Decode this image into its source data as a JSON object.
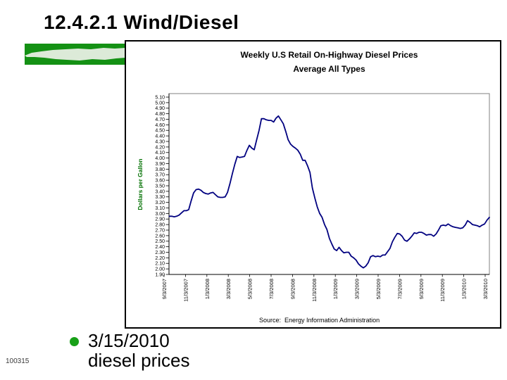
{
  "slide": {
    "title": "12.4.2.1 Wind/Diesel",
    "bullet": {
      "line1": "3/15/2010",
      "line2": "diesel prices"
    },
    "slide_number": "100315"
  },
  "colors": {
    "accent_green": "#149114",
    "accent_streak": "#dcead8",
    "bullet_green": "#18a018",
    "axis_label_green": "#007000",
    "line_navy": "#000080",
    "plot_border_gray": "#808080"
  },
  "chart_data": {
    "type": "line",
    "title": "Weekly U.S Retail On-Highway Diesel Prices",
    "subtitle": "Average All Types",
    "ylabel": "Dollars per Gallon",
    "source": "Source:  Energy Information Administration",
    "ylim": [
      1.9,
      5.1
    ],
    "ytick_step": 0.1,
    "grid": "horizontal",
    "legend": "none",
    "xtick_labels": [
      "9/3/2007",
      "11/3/2007",
      "1/3/2008",
      "3/3/2008",
      "5/3/2008",
      "7/3/2008",
      "9/3/2008",
      "11/3/2008",
      "1/3/2009",
      "3/3/2009",
      "5/3/2009",
      "7/3/2009",
      "9/3/2009",
      "11/3/2009",
      "1/3/2010",
      "3/3/2010"
    ],
    "series": [
      {
        "dates": [
          "9/3/2007",
          "9/10/2007",
          "9/17/2007",
          "9/24/2007",
          "10/1/2007",
          "10/8/2007",
          "10/15/2007",
          "10/22/2007",
          "10/29/2007",
          "11/5/2007",
          "11/12/2007",
          "11/19/2007",
          "11/26/2007",
          "12/3/2007",
          "12/10/2007",
          "12/17/2007",
          "12/24/2007",
          "12/31/2007",
          "1/7/2008",
          "1/14/2008",
          "1/21/2008",
          "1/28/2008",
          "2/4/2008",
          "2/11/2008",
          "2/18/2008",
          "2/25/2008",
          "3/3/2008",
          "3/10/2008",
          "3/17/2008",
          "3/24/2008",
          "3/31/2008",
          "4/7/2008",
          "4/14/2008",
          "4/21/2008",
          "4/28/2008",
          "5/5/2008",
          "5/12/2008",
          "5/19/2008",
          "5/26/2008",
          "6/2/2008",
          "6/9/2008",
          "6/16/2008",
          "6/23/2008",
          "6/30/2008",
          "7/7/2008",
          "7/14/2008",
          "7/21/2008",
          "7/28/2008",
          "8/4/2008",
          "8/11/2008",
          "8/18/2008",
          "8/25/2008",
          "9/1/2008",
          "9/8/2008",
          "9/15/2008",
          "9/22/2008",
          "9/29/2008",
          "10/6/2008",
          "10/13/2008",
          "10/20/2008",
          "10/27/2008",
          "11/3/2008",
          "11/10/2008",
          "11/17/2008",
          "11/24/2008",
          "12/1/2008",
          "12/8/2008",
          "12/15/2008",
          "12/22/2008",
          "12/29/2008",
          "1/5/2009",
          "1/12/2009",
          "1/19/2009",
          "1/26/2009",
          "2/2/2009",
          "2/9/2009",
          "2/16/2009",
          "2/23/2009",
          "3/2/2009",
          "3/9/2009",
          "3/16/2009",
          "3/23/2009",
          "3/30/2009",
          "4/6/2009",
          "4/13/2009",
          "4/20/2009",
          "4/27/2009",
          "5/4/2009",
          "5/11/2009",
          "5/18/2009",
          "5/25/2009",
          "6/1/2009",
          "6/8/2009",
          "6/15/2009",
          "6/22/2009",
          "6/29/2009",
          "7/6/2009",
          "7/13/2009",
          "7/20/2009",
          "7/27/2009",
          "8/3/2009",
          "8/10/2009",
          "8/17/2009",
          "8/24/2009",
          "8/31/2009",
          "9/7/2009",
          "9/14/2009",
          "9/21/2009",
          "9/28/2009",
          "10/5/2009",
          "10/12/2009",
          "10/19/2009",
          "10/26/2009",
          "11/2/2009",
          "11/9/2009",
          "11/16/2009",
          "11/23/2009",
          "11/30/2009",
          "12/7/2009",
          "12/14/2009",
          "12/21/2009",
          "12/28/2009",
          "1/4/2010",
          "1/11/2010",
          "1/18/2010",
          "1/25/2010",
          "2/1/2010",
          "2/8/2010",
          "2/15/2010",
          "2/22/2010",
          "3/1/2010",
          "3/8/2010",
          "3/15/2010"
        ],
        "values": [
          2.95,
          2.95,
          2.94,
          2.95,
          2.97,
          3.01,
          3.05,
          3.05,
          3.07,
          3.23,
          3.37,
          3.43,
          3.44,
          3.42,
          3.38,
          3.36,
          3.35,
          3.37,
          3.38,
          3.34,
          3.3,
          3.29,
          3.29,
          3.3,
          3.38,
          3.54,
          3.72,
          3.89,
          4.03,
          4.01,
          4.02,
          4.03,
          4.14,
          4.23,
          4.18,
          4.15,
          4.33,
          4.5,
          4.71,
          4.71,
          4.69,
          4.68,
          4.68,
          4.65,
          4.72,
          4.76,
          4.69,
          4.62,
          4.48,
          4.33,
          4.25,
          4.21,
          4.18,
          4.14,
          4.07,
          3.96,
          3.96,
          3.86,
          3.74,
          3.46,
          3.28,
          3.12,
          3.0,
          2.93,
          2.8,
          2.71,
          2.55,
          2.45,
          2.36,
          2.33,
          2.39,
          2.33,
          2.29,
          2.3,
          2.3,
          2.23,
          2.2,
          2.16,
          2.09,
          2.05,
          2.02,
          2.05,
          2.11,
          2.22,
          2.24,
          2.22,
          2.23,
          2.22,
          2.25,
          2.25,
          2.31,
          2.37,
          2.49,
          2.57,
          2.64,
          2.63,
          2.59,
          2.52,
          2.5,
          2.54,
          2.59,
          2.65,
          2.64,
          2.66,
          2.66,
          2.64,
          2.61,
          2.62,
          2.62,
          2.59,
          2.63,
          2.7,
          2.78,
          2.79,
          2.78,
          2.81,
          2.78,
          2.76,
          2.75,
          2.74,
          2.73,
          2.74,
          2.79,
          2.87,
          2.84,
          2.8,
          2.79,
          2.78,
          2.76,
          2.79,
          2.81,
          2.88,
          2.93
        ]
      }
    ]
  }
}
